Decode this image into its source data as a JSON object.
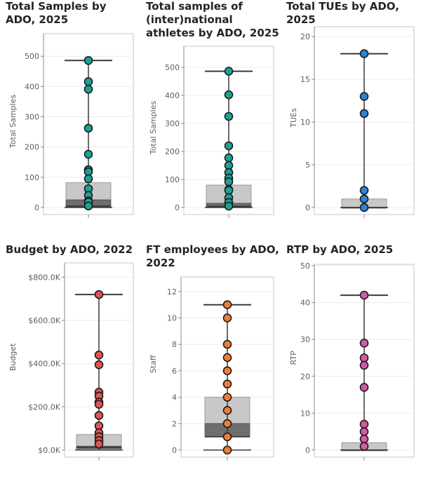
{
  "chart_data": [
    {
      "type": "box-dot",
      "title": "Total Samples by ADO, 2025",
      "ylabel": "Total Samples",
      "ylim": [
        0,
        570
      ],
      "ticks": [
        0,
        100,
        200,
        300,
        400,
        500
      ],
      "tick_labels": [
        "0",
        "100",
        "200",
        "300",
        "400",
        "500"
      ],
      "point_color": "#1aa393",
      "q1": 2,
      "median": 5,
      "q3": 25,
      "upper_box": 82,
      "max": 486,
      "values": [
        486,
        416,
        391,
        262,
        176,
        125,
        118,
        95,
        62,
        40,
        22,
        18,
        5
      ]
    },
    {
      "type": "box-dot",
      "title": "Total samples of (inter)national athletes by ADO, 2025",
      "ylabel": "Total Samples",
      "ylim": [
        0,
        570
      ],
      "ticks": [
        0,
        100,
        200,
        300,
        400,
        500
      ],
      "tick_labels": [
        "0",
        "100",
        "200",
        "300",
        "400",
        "500"
      ],
      "point_color": "#1aa393",
      "q1": 2,
      "median": 4,
      "q3": 15,
      "upper_box": 80,
      "max": 486,
      "values": [
        486,
        402,
        325,
        220,
        177,
        150,
        125,
        105,
        92,
        64,
        61,
        35,
        18,
        5
      ]
    },
    {
      "type": "box-dot",
      "title": "Total TUEs by ADO, 2025",
      "ylabel": "TUEs",
      "ylim": [
        0,
        21
      ],
      "ticks": [
        0,
        5,
        10,
        15,
        20
      ],
      "tick_labels": [
        "0",
        "5",
        "10",
        "15",
        "20"
      ],
      "point_color": "#2f82d4",
      "q1": 0,
      "median": 0,
      "q3": 0,
      "upper_box": 1,
      "max": 18,
      "values": [
        18,
        13,
        11,
        2,
        1,
        0
      ]
    },
    {
      "type": "box-dot",
      "title": "Budget by ADO, 2022",
      "ylabel": "Budget",
      "ylim": [
        0,
        860000
      ],
      "ticks": [
        0,
        200000,
        400000,
        600000,
        800000
      ],
      "tick_labels": [
        "$0.0K",
        "$200.0K",
        "$400.0K",
        "$600.0K",
        "$800.0K"
      ],
      "point_color": "#e05555",
      "q1": 5000,
      "median": 12000,
      "q3": 18000,
      "upper_box": 72000,
      "max": 720000,
      "values": [
        720000,
        440000,
        395000,
        268000,
        250000,
        222000,
        212000,
        160000,
        112000,
        80000,
        62000,
        44000,
        28000
      ]
    },
    {
      "type": "box-dot",
      "title": "FT employees by ADO, 2022",
      "ylabel": "Staff",
      "ylim": [
        0,
        13
      ],
      "ticks": [
        0,
        2,
        4,
        6,
        8,
        10,
        12
      ],
      "tick_labels": [
        "0",
        "2",
        "4",
        "6",
        "8",
        "10",
        "12"
      ],
      "point_color": "#f07c3a",
      "q1": 1,
      "median": 1,
      "q3": 2,
      "upper_box": 4,
      "max": 11,
      "values": [
        11,
        10,
        8,
        7,
        6,
        5,
        4,
        3,
        2,
        1,
        0
      ]
    },
    {
      "type": "box-dot",
      "title": "RTP by ADO, 2025",
      "ylabel": "RTP",
      "ylim": [
        0,
        50
      ],
      "ticks": [
        0,
        10,
        20,
        30,
        40,
        50
      ],
      "tick_labels": [
        "0",
        "10",
        "20",
        "30",
        "40",
        "50"
      ],
      "point_color": "#d65aa5",
      "q1": 0,
      "median": 0,
      "q3": 0,
      "upper_box": 2,
      "max": 42,
      "values": [
        42,
        29,
        25,
        23,
        17,
        7,
        5,
        3,
        1
      ]
    }
  ]
}
